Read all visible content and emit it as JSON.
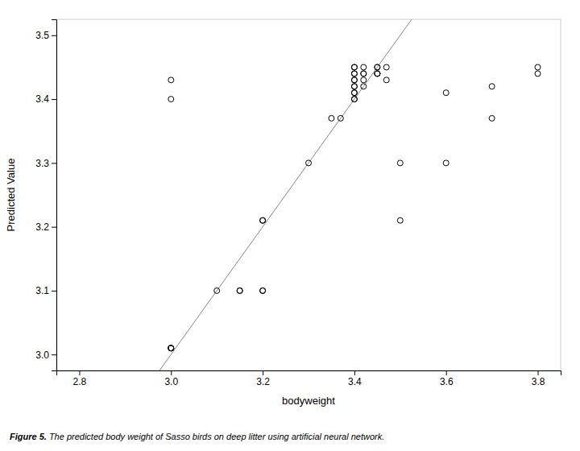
{
  "chart_data": {
    "type": "scatter",
    "x": [
      3.0,
      3.0,
      3.0,
      3.0,
      3.0,
      3.0,
      3.0,
      3.1,
      3.15,
      3.15,
      3.2,
      3.2,
      3.2,
      3.2,
      3.3,
      3.35,
      3.37,
      3.4,
      3.4,
      3.4,
      3.4,
      3.4,
      3.4,
      3.4,
      3.4,
      3.4,
      3.4,
      3.4,
      3.4,
      3.42,
      3.42,
      3.42,
      3.42,
      3.42,
      3.45,
      3.45,
      3.45,
      3.45,
      3.45,
      3.47,
      3.47,
      3.5,
      3.5,
      3.6,
      3.6,
      3.7,
      3.7,
      3.8,
      3.8
    ],
    "values": [
      3.43,
      3.4,
      3.01,
      3.01,
      3.01,
      3.01,
      3.01,
      3.1,
      3.1,
      3.1,
      3.1,
      3.1,
      3.21,
      3.21,
      3.3,
      3.37,
      3.37,
      3.4,
      3.4,
      3.41,
      3.41,
      3.42,
      3.42,
      3.43,
      3.43,
      3.44,
      3.44,
      3.45,
      3.45,
      3.42,
      3.43,
      3.44,
      3.44,
      3.45,
      3.44,
      3.44,
      3.44,
      3.45,
      3.45,
      3.43,
      3.45,
      3.3,
      3.21,
      3.41,
      3.3,
      3.42,
      3.37,
      3.44,
      3.45
    ],
    "color": "black",
    "xlim": [
      2.75,
      3.85
    ],
    "ylim": [
      2.975,
      3.525
    ],
    "xticks": [
      2.8,
      {
        "value": 3.0,
        "label": "3.0"
      },
      3.2,
      3.4,
      3.6,
      3.8
    ],
    "yticks": [
      {
        "value": 3.0,
        "label": "3.0"
      },
      3.1,
      3.2,
      3.3,
      3.4,
      3.5
    ],
    "xlabel": "bodyweight",
    "ylabel": "Predicted Value",
    "grid": false,
    "caption": [
      "Figure 5.",
      " The predicted body weight of Sasso birds on deep litter using artificial neural network."
    ]
  }
}
